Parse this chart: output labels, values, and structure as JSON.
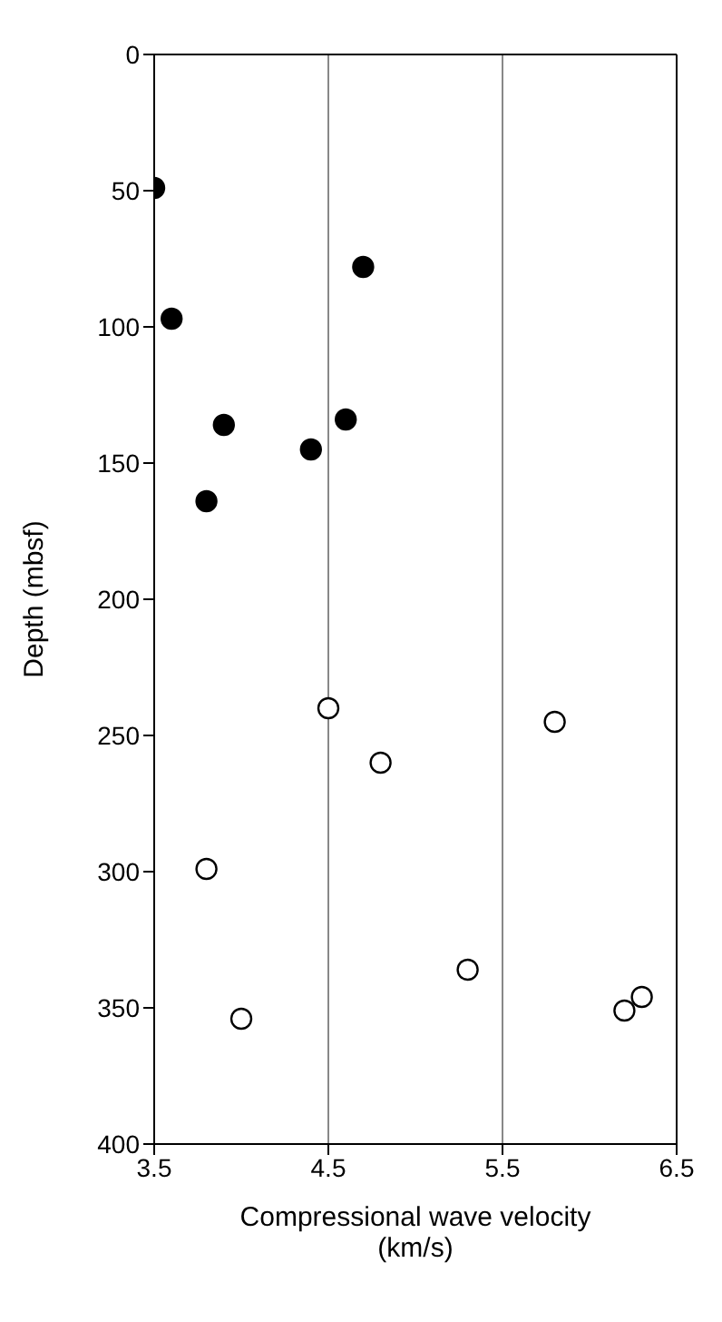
{
  "chart_data": {
    "type": "scatter",
    "xlabel": "Compressional wave velocity (km/s)",
    "ylabel": "Depth (mbsf)",
    "xlim": [
      3.5,
      6.5
    ],
    "xticks": [
      3.5,
      4.5,
      5.5,
      6.5
    ],
    "ylim": [
      400,
      0
    ],
    "yticks": [
      0,
      50,
      100,
      150,
      200,
      250,
      300,
      350,
      400
    ],
    "grid": "x",
    "marker": "circle",
    "series": [
      {
        "color": "#000000",
        "x": [
          3.5,
          4.7,
          3.6,
          3.9,
          4.6,
          4.4,
          3.8
        ],
        "values": [
          49,
          78,
          97,
          136,
          134,
          145,
          164
        ]
      },
      {
        "color": "#ffffff",
        "x": [
          4.5,
          5.8,
          4.8,
          3.8,
          5.3,
          4.0,
          6.2,
          6.3
        ],
        "values": [
          240,
          245,
          260,
          299,
          336,
          354,
          351,
          346
        ]
      }
    ]
  }
}
